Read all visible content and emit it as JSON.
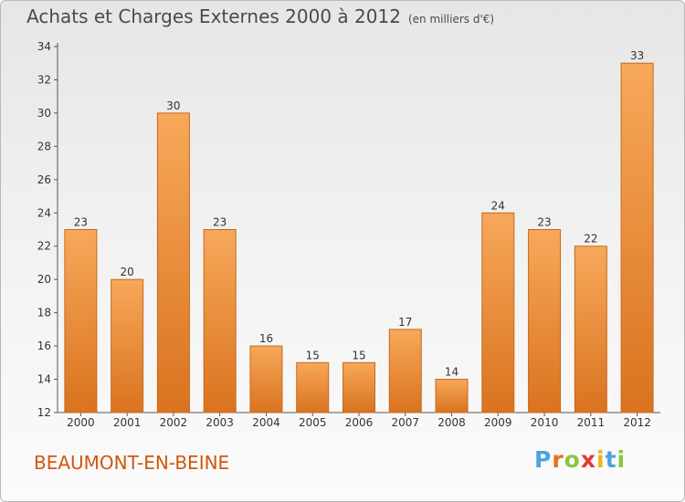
{
  "title": "Achats et Charges Externes 2000 à 2012",
  "subtitle": "(en milliers d'€)",
  "commune": "BEAUMONT-EN-BEINE",
  "logo": {
    "letters": [
      "P",
      "r",
      "o",
      "x",
      "i",
      "t",
      "i"
    ],
    "colors": [
      "#4aa3df",
      "#e8701a",
      "#8cc63f",
      "#e03c31",
      "#f2b01e",
      "#4aa3df",
      "#8cc63f"
    ]
  },
  "colors": {
    "bar_light": "#f7a85a",
    "bar_dark": "#d9731f",
    "bar_border": "#c8681a",
    "text": "#333333"
  },
  "chart_data": {
    "type": "bar",
    "categories": [
      "2000",
      "2001",
      "2002",
      "2003",
      "2004",
      "2005",
      "2006",
      "2007",
      "2008",
      "2009",
      "2010",
      "2011",
      "2012"
    ],
    "values": [
      23,
      20,
      30,
      23,
      16,
      15,
      15,
      17,
      14,
      24,
      23,
      22,
      33
    ],
    "ylim": [
      12,
      34
    ],
    "yticks": [
      12,
      14,
      16,
      18,
      20,
      22,
      24,
      26,
      28,
      30,
      32,
      34
    ],
    "grid": false,
    "legend": false
  }
}
